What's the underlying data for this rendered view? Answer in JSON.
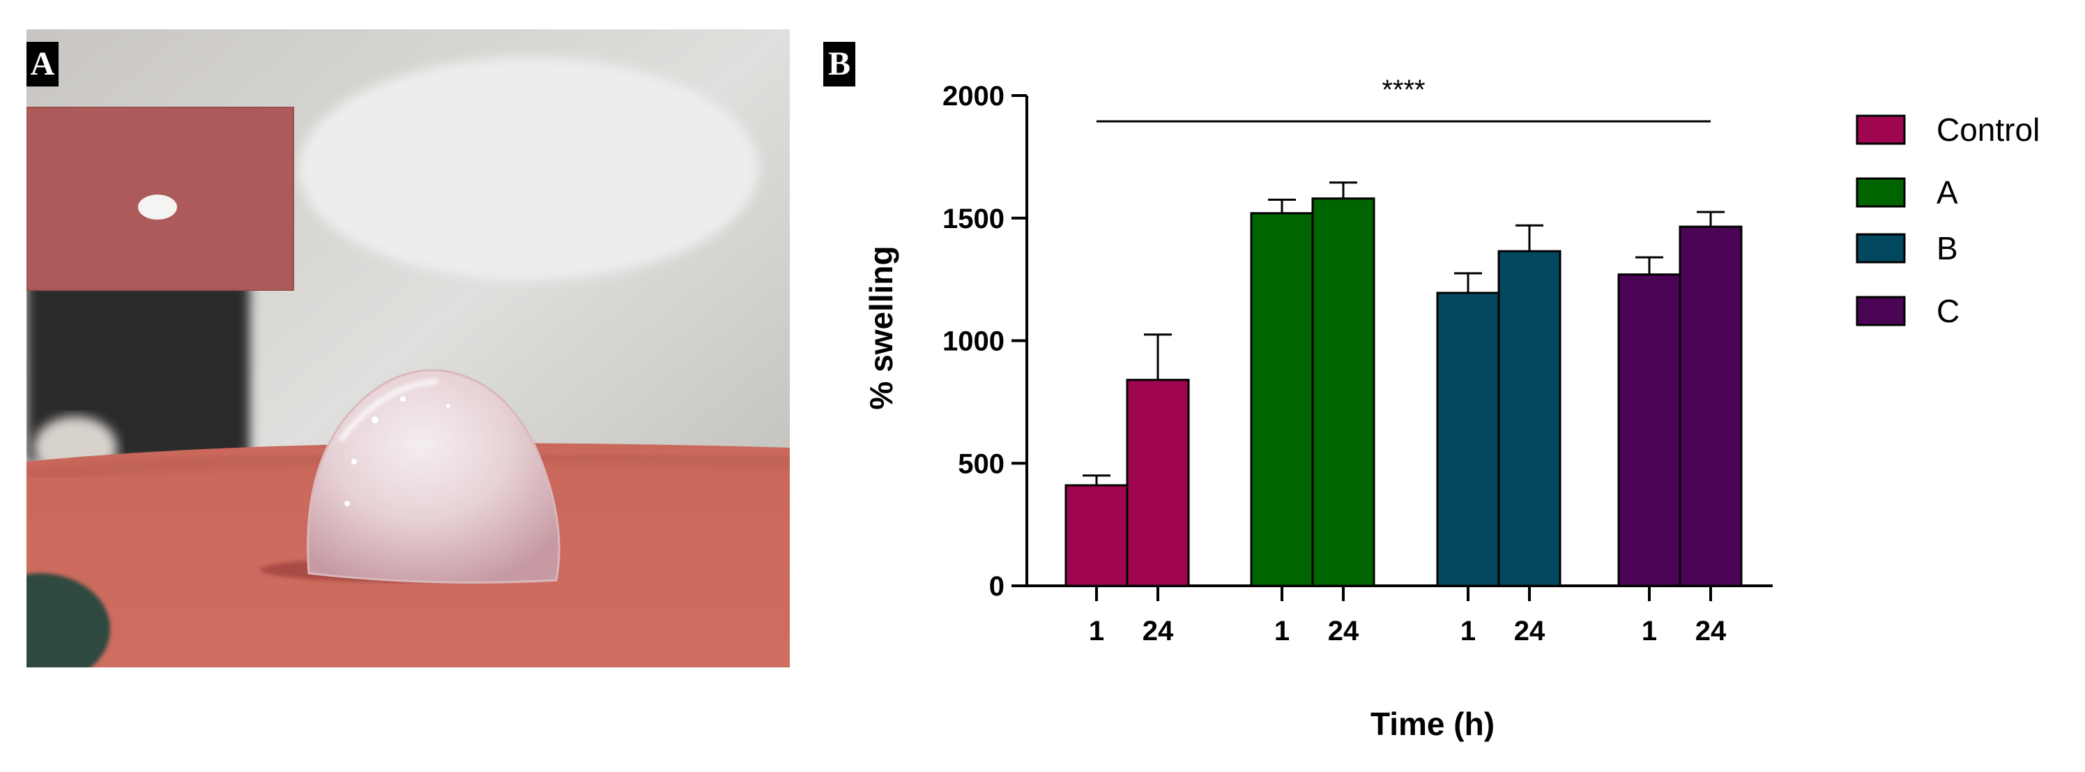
{
  "panels": {
    "a_label": "A",
    "b_label": "B"
  },
  "photo": {
    "content": "hydrogel-droplet-photo",
    "inset_content": "dry-hydrogel-pellet-photo"
  },
  "colors": {
    "Control": "#a0064f",
    "A": "#006400",
    "B": "#02485f",
    "C": "#4b0356"
  },
  "chart_data": {
    "type": "bar",
    "xlabel": "Time (h)",
    "ylabel": "% swelling",
    "ylim": [
      0,
      2000
    ],
    "yticks": [
      0,
      500,
      1000,
      1500,
      2000
    ],
    "categories": [
      "1",
      "24"
    ],
    "series": [
      {
        "name": "Control",
        "values": [
          410,
          840
        ],
        "errors": [
          40,
          185
        ]
      },
      {
        "name": "A",
        "values": [
          1520,
          1580
        ],
        "errors": [
          55,
          65
        ]
      },
      {
        "name": "B",
        "values": [
          1195,
          1365
        ],
        "errors": [
          80,
          105
        ]
      },
      {
        "name": "C",
        "values": [
          1270,
          1465
        ],
        "errors": [
          70,
          60
        ]
      }
    ],
    "significance": {
      "label": "****",
      "spans": "all groups"
    },
    "legend": {
      "placement": "right"
    },
    "grid": false
  }
}
